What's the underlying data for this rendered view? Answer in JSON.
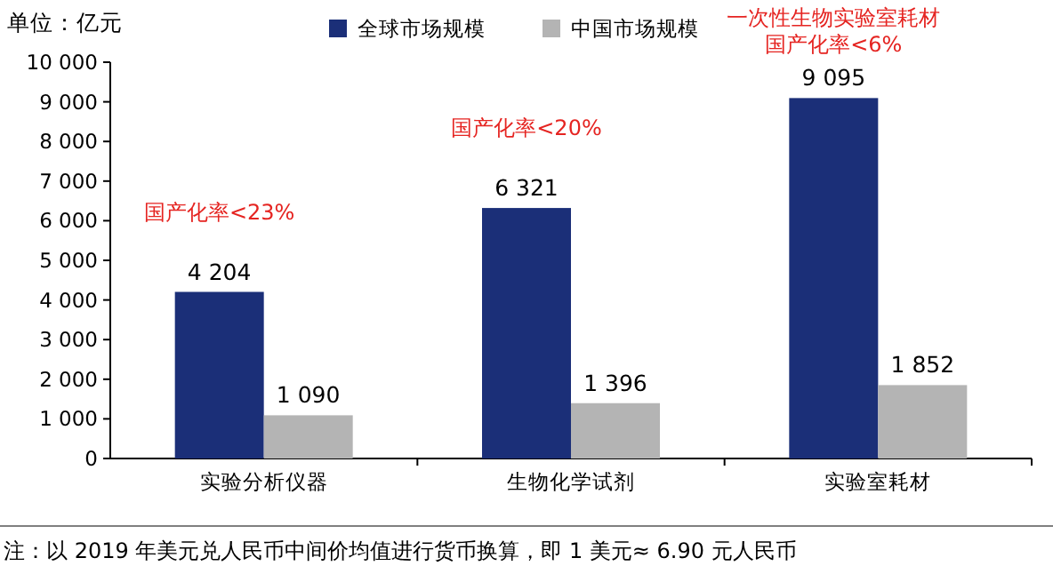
{
  "chart_data": {
    "type": "bar",
    "ylabel": "单位：亿元",
    "categories": [
      "实验分析仪器",
      "生物化学试剂",
      "实验室耗材"
    ],
    "series": [
      {
        "name": "全球市场规模",
        "color": "#1b2f78",
        "values": [
          4204,
          6321,
          9095
        ],
        "value_labels": [
          "4 204",
          "6 321",
          "9 095"
        ]
      },
      {
        "name": "中国市场规模",
        "color": "#b4b4b4",
        "values": [
          1090,
          1396,
          1852
        ],
        "value_labels": [
          "1 090",
          "1 396",
          "1 852"
        ]
      }
    ],
    "ylim": [
      0,
      10000
    ],
    "yticks": [
      0,
      {
        "value": 1000,
        "label": "1 000"
      },
      {
        "value": 2000,
        "label": "2 000"
      },
      {
        "value": 3000,
        "label": "3 000"
      },
      {
        "value": 4000,
        "label": "4 000"
      },
      {
        "value": 5000,
        "label": "5 000"
      },
      {
        "value": 6000,
        "label": "6 000"
      },
      {
        "value": 7000,
        "label": "7 000"
      },
      {
        "value": 8000,
        "label": "8 000"
      },
      {
        "value": 9000,
        "label": "9 000"
      },
      {
        "value": 10000,
        "label": "10 000"
      }
    ],
    "grid": false,
    "legend": "top",
    "annotations": [
      "国产化率<23%",
      "国产化率<20%",
      "一次性生物实验室耗材",
      "国产化率<6%",
      "注：以 2019 年美元兑人民币中间价均值进行货币换算，即 1 美元≈ 6.90 元人民币"
    ]
  }
}
